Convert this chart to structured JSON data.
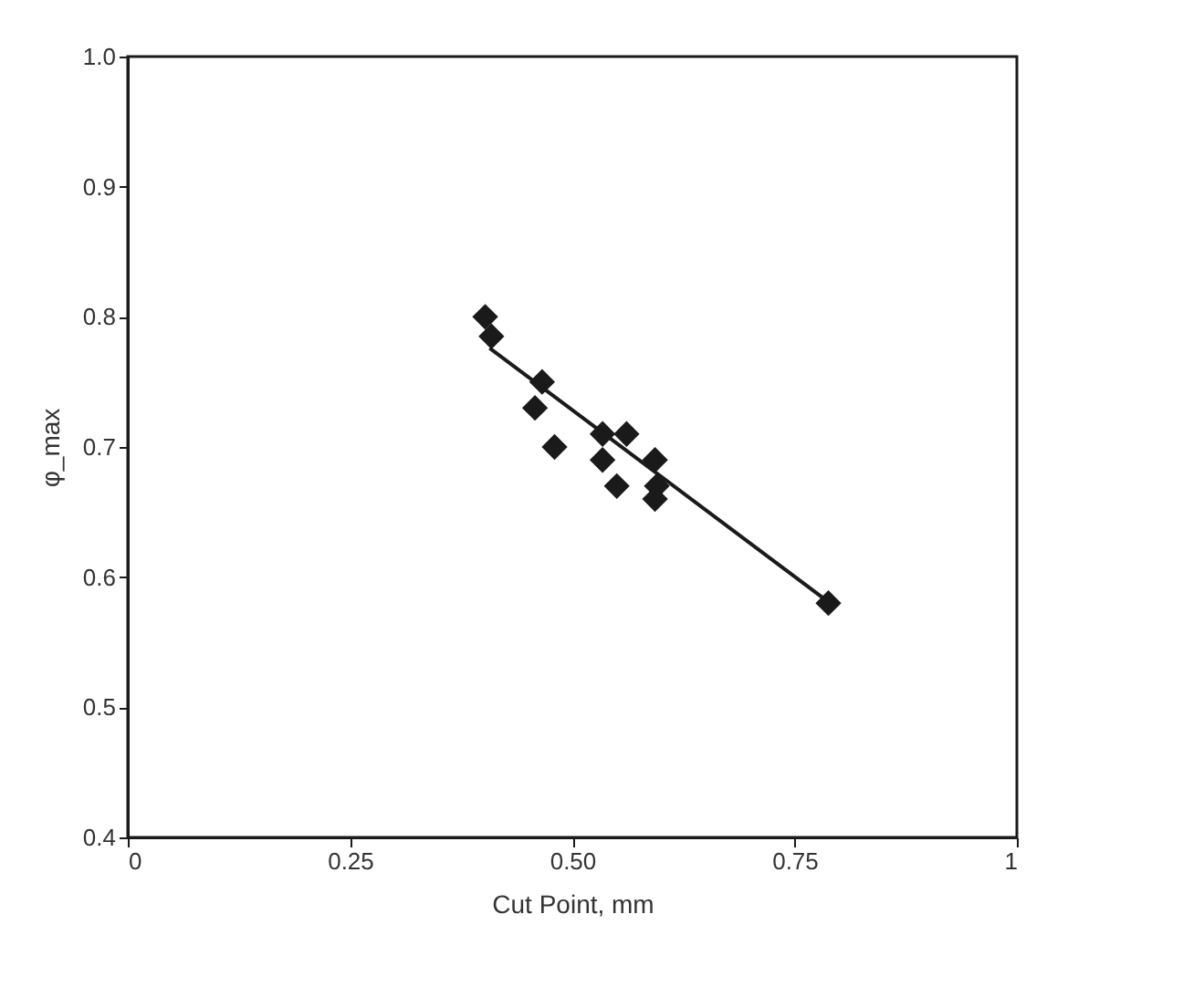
{
  "chart_data": {
    "type": "scatter",
    "xlabel": "Cut Point, mm",
    "ylabel": "φ_max",
    "xlim": [
      0,
      1
    ],
    "ylim": [
      0.4,
      1.0
    ],
    "xticks": [
      0,
      0.25,
      {
        "value": 0.5,
        "label": "0.50"
      },
      0.75,
      1
    ],
    "yticks": [
      {
        "value": 0.4,
        "label": "0.4"
      },
      {
        "value": 0.5,
        "label": "0.5"
      },
      {
        "value": 0.6,
        "label": "0.6"
      },
      {
        "value": 0.7,
        "label": "0.7"
      },
      {
        "value": 0.8,
        "label": "0.8"
      },
      {
        "value": 0.9,
        "label": "0.9"
      },
      {
        "value": 1.0,
        "label": "1.0"
      }
    ],
    "marker": "diamond",
    "grid": false,
    "series": [
      {
        "color": "#1a1a1a",
        "x": [
          0.402,
          0.409,
          0.466,
          0.458,
          0.48,
          0.534,
          0.561,
          0.534,
          0.55,
          0.593,
          0.595,
          0.593,
          0.788
        ],
        "values": [
          0.8,
          0.785,
          0.75,
          0.73,
          0.7,
          0.71,
          0.71,
          0.69,
          0.67,
          0.69,
          0.67,
          0.66,
          0.58
        ]
      },
      {
        "type": "line",
        "color": "#1a1a1a",
        "line_style": "solid",
        "marker": "none",
        "x": [
          0.407,
          0.786
        ],
        "values": [
          0.776,
          0.582
        ]
      }
    ]
  }
}
